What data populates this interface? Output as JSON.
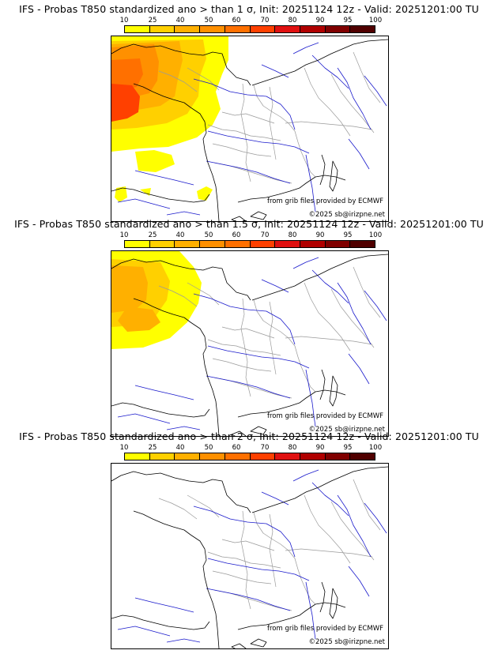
{
  "colors": {
    "scale": [
      "#ffff00",
      "#ffd000",
      "#ffb000",
      "#ff9000",
      "#ff7000",
      "#ff4000",
      "#e01010",
      "#b00000",
      "#800000",
      "#500000"
    ],
    "coast": "#000000",
    "rivers": "#1a1acc",
    "borders": "#9a9a9a"
  },
  "colorbar": {
    "ticks": [
      "10",
      "25",
      "40",
      "50",
      "60",
      "70",
      "80",
      "90",
      "95",
      "100"
    ]
  },
  "panels": [
    {
      "title": "IFS - Probas T850  standardized ano > than 1 σ, Init: 20251124 12z - Valid: 20251201:00 TU",
      "credit_source": "from grib files provided by ECMWF",
      "credit_copyright": "©2025 sb@irizpne.net",
      "probability_overlay": "high"
    },
    {
      "title": "IFS - Probas T850  standardized ano > than 1.5 σ, Init: 20251124 12z - Valid: 20251201:00 TU",
      "credit_source": "from grib files provided by ECMWF",
      "credit_copyright": "©2025 sb@irizpne.net",
      "probability_overlay": "medium"
    },
    {
      "title": "IFS - Probas T850  standardized ano > than 2 σ, Init: 20251124 12z - Valid: 20251201:00 TU",
      "credit_source": "from grib files provided by ECMWF",
      "credit_copyright": "©2025 sb@irizpne.net",
      "probability_overlay": "none"
    }
  ]
}
